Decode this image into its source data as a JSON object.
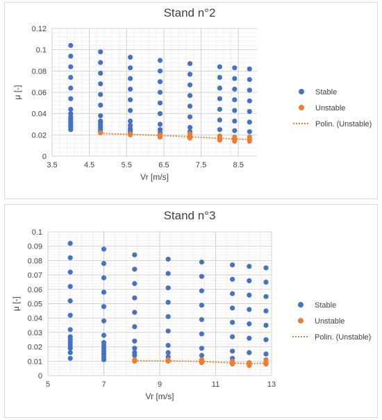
{
  "chart_data": [
    {
      "type": "scatter",
      "title": "Stand n°2",
      "xlabel": "Vr [m/s]",
      "ylabel": "μ [-]",
      "xlim": [
        3.5,
        9.0
      ],
      "ylim": [
        0,
        0.12
      ],
      "xticks": [
        3.5,
        4.5,
        5.5,
        6.5,
        7.5,
        8.5
      ],
      "xtick_labels": [
        "3.5",
        "4.5",
        "5.5",
        "6.5",
        "7.5",
        "8.5"
      ],
      "yticks": [
        0,
        0.02,
        0.04,
        0.06,
        0.08,
        0.1,
        0.12
      ],
      "ytick_labels": [
        "0",
        "0.02",
        "0.04",
        "0.06",
        "0.08",
        "0.1",
        "0.12"
      ],
      "grid": true,
      "legend_position": "right",
      "series": [
        {
          "name": "Stable",
          "color": "#4472c4",
          "points": [
            [
              4.0,
              0.104
            ],
            [
              4.0,
              0.094
            ],
            [
              4.0,
              0.084
            ],
            [
              4.0,
              0.074
            ],
            [
              4.0,
              0.064
            ],
            [
              4.0,
              0.054
            ],
            [
              4.0,
              0.044
            ],
            [
              4.0,
              0.04
            ],
            [
              4.0,
              0.037
            ],
            [
              4.0,
              0.035
            ],
            [
              4.0,
              0.033
            ],
            [
              4.0,
              0.031
            ],
            [
              4.0,
              0.029
            ],
            [
              4.0,
              0.027
            ],
            [
              4.0,
              0.025
            ],
            [
              4.8,
              0.098
            ],
            [
              4.8,
              0.088
            ],
            [
              4.8,
              0.078
            ],
            [
              4.8,
              0.068
            ],
            [
              4.8,
              0.058
            ],
            [
              4.8,
              0.048
            ],
            [
              4.8,
              0.038
            ],
            [
              4.8,
              0.033
            ],
            [
              4.8,
              0.031
            ],
            [
              4.8,
              0.029
            ],
            [
              4.8,
              0.027
            ],
            [
              4.8,
              0.025
            ],
            [
              4.8,
              0.023
            ],
            [
              5.6,
              0.093
            ],
            [
              5.6,
              0.083
            ],
            [
              5.6,
              0.073
            ],
            [
              5.6,
              0.063
            ],
            [
              5.6,
              0.053
            ],
            [
              5.6,
              0.043
            ],
            [
              5.6,
              0.033
            ],
            [
              5.6,
              0.029
            ],
            [
              5.6,
              0.026
            ],
            [
              5.6,
              0.024
            ],
            [
              5.6,
              0.022
            ],
            [
              6.4,
              0.09
            ],
            [
              6.4,
              0.08
            ],
            [
              6.4,
              0.07
            ],
            [
              6.4,
              0.06
            ],
            [
              6.4,
              0.05
            ],
            [
              6.4,
              0.04
            ],
            [
              6.4,
              0.03
            ],
            [
              6.4,
              0.025
            ],
            [
              6.4,
              0.022
            ],
            [
              7.2,
              0.087
            ],
            [
              7.2,
              0.077
            ],
            [
              7.2,
              0.067
            ],
            [
              7.2,
              0.057
            ],
            [
              7.2,
              0.047
            ],
            [
              7.2,
              0.037
            ],
            [
              7.2,
              0.027
            ],
            [
              7.2,
              0.023
            ],
            [
              8.0,
              0.084
            ],
            [
              8.0,
              0.074
            ],
            [
              8.0,
              0.064
            ],
            [
              8.0,
              0.054
            ],
            [
              8.0,
              0.044
            ],
            [
              8.0,
              0.034
            ],
            [
              8.0,
              0.025
            ],
            [
              8.4,
              0.083
            ],
            [
              8.4,
              0.073
            ],
            [
              8.4,
              0.063
            ],
            [
              8.4,
              0.053
            ],
            [
              8.4,
              0.043
            ],
            [
              8.4,
              0.033
            ],
            [
              8.4,
              0.024
            ],
            [
              8.8,
              0.082
            ],
            [
              8.8,
              0.072
            ],
            [
              8.8,
              0.062
            ],
            [
              8.8,
              0.052
            ],
            [
              8.8,
              0.042
            ],
            [
              8.8,
              0.032
            ],
            [
              8.8,
              0.023
            ]
          ]
        },
        {
          "name": "Unstable",
          "color": "#ed7d31",
          "points": [
            [
              4.8,
              0.022
            ],
            [
              5.6,
              0.021
            ],
            [
              5.6,
              0.02
            ],
            [
              6.4,
              0.02
            ],
            [
              6.4,
              0.019
            ],
            [
              6.4,
              0.018
            ],
            [
              7.2,
              0.021
            ],
            [
              7.2,
              0.019
            ],
            [
              7.2,
              0.018
            ],
            [
              7.2,
              0.017
            ],
            [
              8.0,
              0.019
            ],
            [
              8.0,
              0.017
            ],
            [
              8.0,
              0.016
            ],
            [
              8.0,
              0.015
            ],
            [
              8.4,
              0.018
            ],
            [
              8.4,
              0.016
            ],
            [
              8.4,
              0.015
            ],
            [
              8.4,
              0.014
            ],
            [
              8.8,
              0.018
            ],
            [
              8.8,
              0.016
            ],
            [
              8.8,
              0.014
            ]
          ]
        },
        {
          "name": "Polin. (Unstable)",
          "color": "#ed7d31",
          "style": "dotted-line",
          "points": [
            [
              4.8,
              0.0215
            ],
            [
              5.6,
              0.0205
            ],
            [
              6.4,
              0.0195
            ],
            [
              7.2,
              0.0182
            ],
            [
              8.0,
              0.0168
            ],
            [
              8.4,
              0.0162
            ],
            [
              8.8,
              0.0157
            ]
          ]
        }
      ]
    },
    {
      "type": "scatter",
      "title": "Stand n°3",
      "xlabel": "Vr [m/s]",
      "ylabel": "μ [-]",
      "xlim": [
        5,
        13
      ],
      "ylim": [
        0,
        0.1
      ],
      "xticks": [
        5,
        7,
        9,
        11,
        13
      ],
      "xtick_labels": [
        "5",
        "7",
        "9",
        "11",
        "13"
      ],
      "yticks": [
        0,
        0.01,
        0.02,
        0.03,
        0.04,
        0.05,
        0.06,
        0.07,
        0.08,
        0.09,
        0.1
      ],
      "ytick_labels": [
        "0",
        "0.01",
        "0.02",
        "0.03",
        "0.04",
        "0.05",
        "0.06",
        "0.07",
        "0.08",
        "0.09",
        "0.1"
      ],
      "grid": true,
      "legend_position": "right",
      "series": [
        {
          "name": "Stable",
          "color": "#4472c4",
          "points": [
            [
              5.8,
              0.092
            ],
            [
              5.8,
              0.082
            ],
            [
              5.8,
              0.072
            ],
            [
              5.8,
              0.062
            ],
            [
              5.8,
              0.052
            ],
            [
              5.8,
              0.042
            ],
            [
              5.8,
              0.032
            ],
            [
              5.8,
              0.027
            ],
            [
              5.8,
              0.025
            ],
            [
              5.8,
              0.023
            ],
            [
              5.8,
              0.021
            ],
            [
              5.8,
              0.019
            ],
            [
              5.8,
              0.016
            ],
            [
              5.8,
              0.012
            ],
            [
              7.0,
              0.088
            ],
            [
              7.0,
              0.078
            ],
            [
              7.0,
              0.068
            ],
            [
              7.0,
              0.058
            ],
            [
              7.0,
              0.048
            ],
            [
              7.0,
              0.038
            ],
            [
              7.0,
              0.028
            ],
            [
              7.0,
              0.023
            ],
            [
              7.0,
              0.021
            ],
            [
              7.0,
              0.019
            ],
            [
              7.0,
              0.017
            ],
            [
              7.0,
              0.015
            ],
            [
              7.0,
              0.013
            ],
            [
              7.0,
              0.011
            ],
            [
              8.1,
              0.084
            ],
            [
              8.1,
              0.074
            ],
            [
              8.1,
              0.064
            ],
            [
              8.1,
              0.054
            ],
            [
              8.1,
              0.044
            ],
            [
              8.1,
              0.034
            ],
            [
              8.1,
              0.024
            ],
            [
              8.1,
              0.019
            ],
            [
              8.1,
              0.016
            ],
            [
              8.1,
              0.014
            ],
            [
              9.3,
              0.081
            ],
            [
              9.3,
              0.071
            ],
            [
              9.3,
              0.061
            ],
            [
              9.3,
              0.051
            ],
            [
              9.3,
              0.041
            ],
            [
              9.3,
              0.031
            ],
            [
              9.3,
              0.021
            ],
            [
              9.3,
              0.016
            ],
            [
              9.3,
              0.013
            ],
            [
              10.5,
              0.079
            ],
            [
              10.5,
              0.069
            ],
            [
              10.5,
              0.059
            ],
            [
              10.5,
              0.049
            ],
            [
              10.5,
              0.039
            ],
            [
              10.5,
              0.029
            ],
            [
              10.5,
              0.019
            ],
            [
              10.5,
              0.014
            ],
            [
              11.6,
              0.077
            ],
            [
              11.6,
              0.067
            ],
            [
              11.6,
              0.057
            ],
            [
              11.6,
              0.047
            ],
            [
              11.6,
              0.037
            ],
            [
              11.6,
              0.027
            ],
            [
              11.6,
              0.017
            ],
            [
              11.6,
              0.012
            ],
            [
              12.2,
              0.076
            ],
            [
              12.2,
              0.066
            ],
            [
              12.2,
              0.056
            ],
            [
              12.2,
              0.046
            ],
            [
              12.2,
              0.036
            ],
            [
              12.2,
              0.026
            ],
            [
              12.2,
              0.016
            ],
            [
              12.8,
              0.075
            ],
            [
              12.8,
              0.065
            ],
            [
              12.8,
              0.055
            ],
            [
              12.8,
              0.045
            ],
            [
              12.8,
              0.035
            ],
            [
              12.8,
              0.025
            ],
            [
              12.8,
              0.015
            ]
          ]
        },
        {
          "name": "Unstable",
          "color": "#ed7d31",
          "points": [
            [
              8.1,
              0.011
            ],
            [
              8.1,
              0.01
            ],
            [
              9.3,
              0.011
            ],
            [
              9.3,
              0.01
            ],
            [
              10.5,
              0.011
            ],
            [
              10.5,
              0.01
            ],
            [
              10.5,
              0.009
            ],
            [
              11.6,
              0.01
            ],
            [
              11.6,
              0.009
            ],
            [
              11.6,
              0.008
            ],
            [
              12.2,
              0.009
            ],
            [
              12.2,
              0.008
            ],
            [
              12.2,
              0.007
            ],
            [
              12.8,
              0.011
            ],
            [
              12.8,
              0.009
            ],
            [
              12.8,
              0.008
            ]
          ]
        },
        {
          "name": "Polin. (Unstable)",
          "color": "#ed7d31",
          "style": "dotted-line",
          "points": [
            [
              8.1,
              0.0103
            ],
            [
              9.3,
              0.0102
            ],
            [
              10.5,
              0.0098
            ],
            [
              11.6,
              0.0088
            ],
            [
              12.2,
              0.0083
            ],
            [
              12.8,
              0.0086
            ]
          ]
        }
      ]
    }
  ]
}
